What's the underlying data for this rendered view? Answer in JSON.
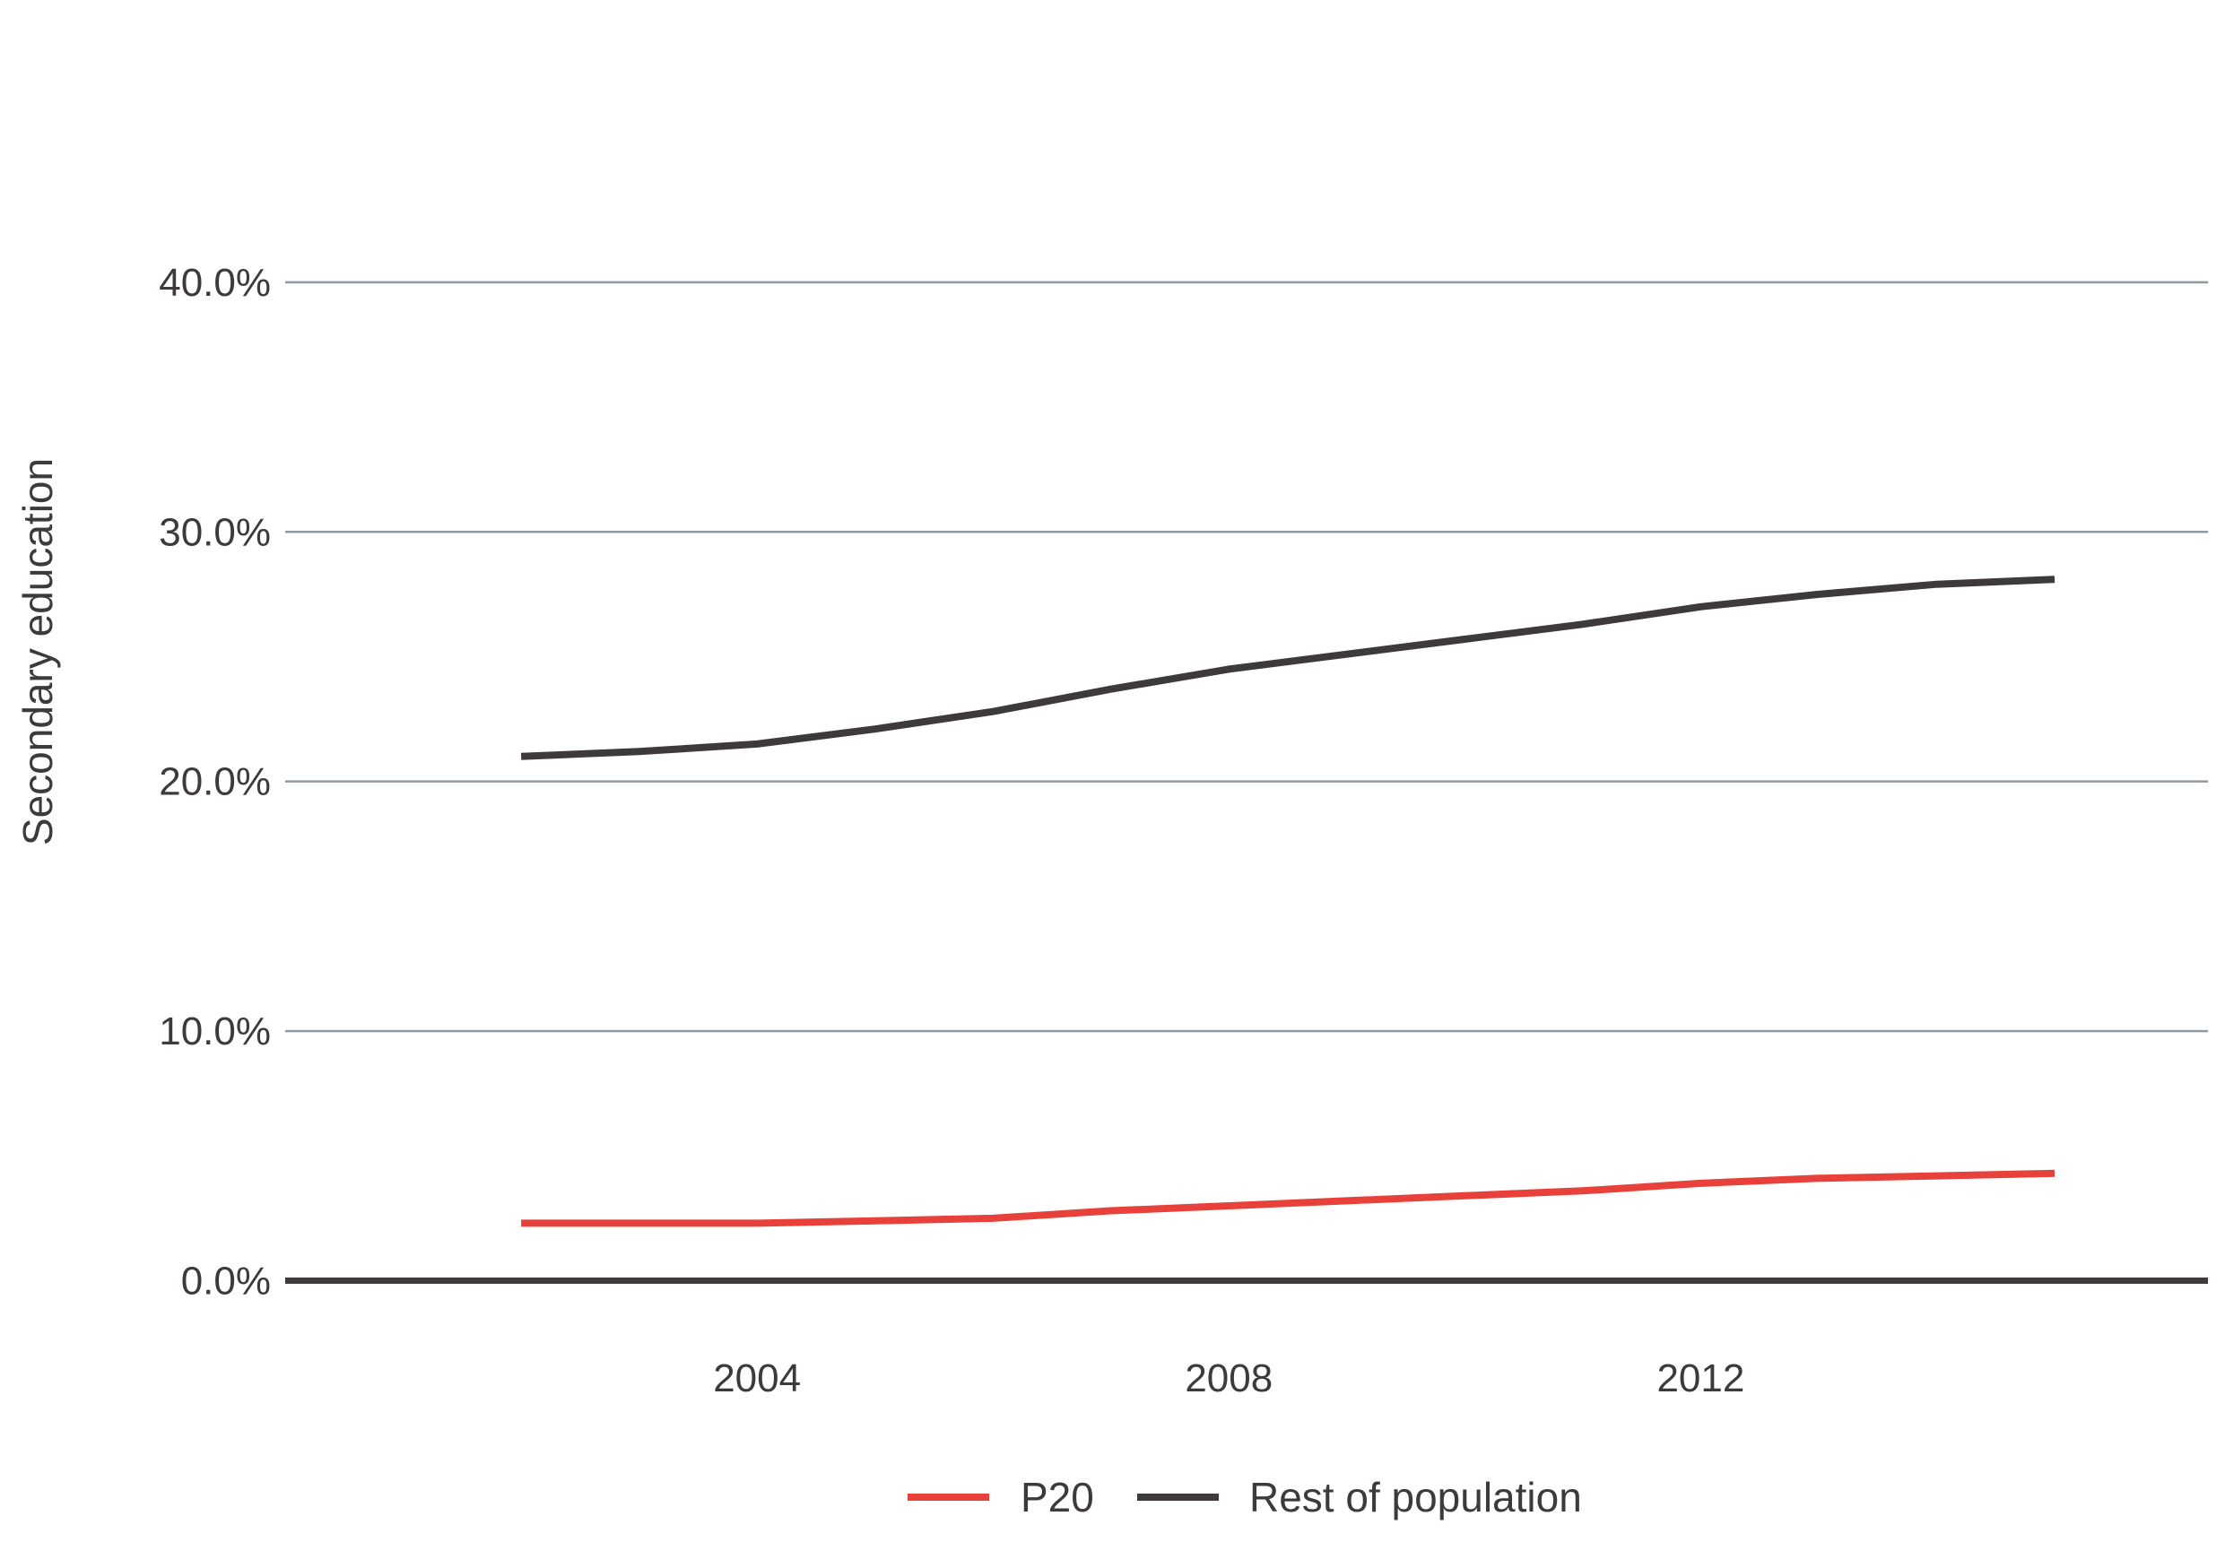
{
  "chart_data": {
    "type": "line",
    "title": "",
    "xlabel": "",
    "ylabel": "Secondary education",
    "x_ticks": [
      "2004",
      "2008",
      "2012"
    ],
    "y_ticks": [
      "0.0%",
      "10.0%",
      "20.0%",
      "30.0%",
      "40.0%"
    ],
    "xlim": [
      2000,
      2016.3
    ],
    "ylim": [
      -3.0,
      47.0
    ],
    "grid": "horizontal",
    "legend_position": "bottom",
    "x": [
      2002,
      2003,
      2004,
      2005,
      2006,
      2007,
      2008,
      2009,
      2010,
      2011,
      2012,
      2013,
      2014,
      2015
    ],
    "series": [
      {
        "name": "P20",
        "color": "#e8403a",
        "values": [
          2.3,
          2.3,
          2.3,
          2.4,
          2.5,
          2.8,
          3.0,
          3.2,
          3.4,
          3.6,
          3.9,
          4.1,
          4.2,
          4.3
        ]
      },
      {
        "name": "Rest of population",
        "color": "#3e3a3b",
        "values": [
          21.0,
          21.2,
          21.5,
          22.1,
          22.8,
          23.7,
          24.5,
          25.1,
          25.7,
          26.3,
          27.0,
          27.5,
          27.9,
          28.1
        ]
      }
    ]
  }
}
